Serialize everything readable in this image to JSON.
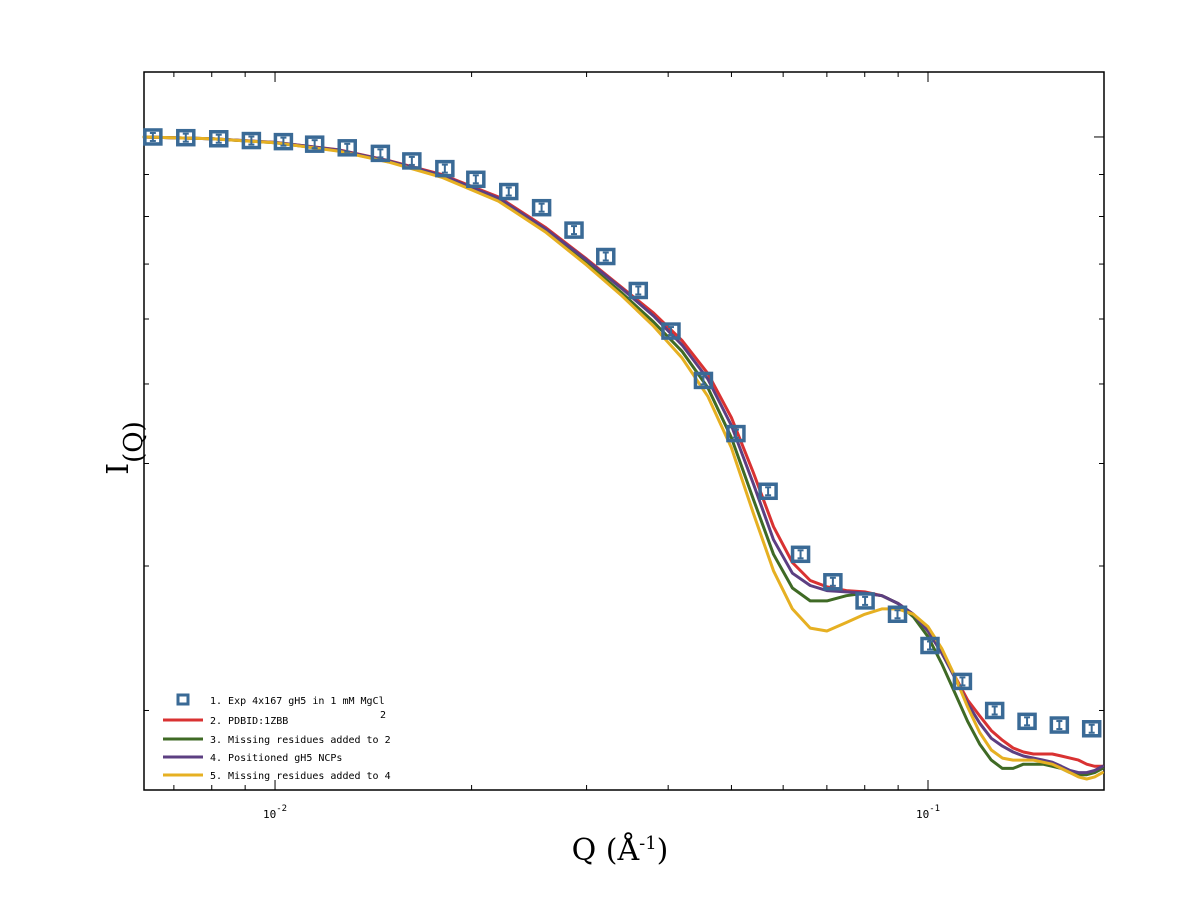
{
  "chart_data": {
    "type": "scatter",
    "xscale": "log",
    "yscale": "log",
    "xlim": [
      0.0063,
      0.186
    ],
    "ylim": [
      0.16,
      1.2
    ],
    "grid": false,
    "legend_position": "bottom-left",
    "xlabel_main": "Q (Å",
    "xlabel_sup": "-1",
    "xlabel_close": ")",
    "ylabel_main": "I",
    "ylabel_sub": "(Q)",
    "x_ticks": [
      {
        "value": 0.01,
        "base": "10",
        "exp": "-2"
      },
      {
        "value": 0.1,
        "base": "10",
        "exp": "-1"
      }
    ],
    "colors": {
      "exp": "#3a6a96",
      "pdb": "#d93232",
      "missing2": "#3f6a25",
      "positioned": "#5c3f82",
      "missing4": "#e6b022"
    },
    "series": [
      {
        "name": "1. Exp 4x167 gH5 in 1 mM MgCl",
        "subscript": "2",
        "kind": "markers",
        "color_key": "exp",
        "x": [
          0.0065,
          0.0073,
          0.0082,
          0.0092,
          0.0103,
          0.0115,
          0.0129,
          0.0145,
          0.0162,
          0.0182,
          0.0203,
          0.0228,
          0.0256,
          0.0287,
          0.0321,
          0.036,
          0.0404,
          0.0453,
          0.0508,
          0.0569,
          0.0638,
          0.0715,
          0.0801,
          0.0898,
          0.1007,
          0.1129,
          0.1265,
          0.1418,
          0.1589,
          0.1781
        ],
        "y": [
          1.0,
          0.998,
          0.995,
          0.99,
          0.987,
          0.98,
          0.97,
          0.955,
          0.935,
          0.915,
          0.888,
          0.858,
          0.82,
          0.77,
          0.715,
          0.65,
          0.58,
          0.505,
          0.435,
          0.37,
          0.31,
          0.287,
          0.272,
          0.262,
          0.24,
          0.217,
          0.2,
          0.194,
          0.192,
          0.19
        ]
      },
      {
        "name": "2. PDBID:1ZBB",
        "kind": "line",
        "color_key": "pdb",
        "x": [
          0.0063,
          0.008,
          0.01,
          0.0125,
          0.015,
          0.018,
          0.022,
          0.026,
          0.03,
          0.034,
          0.038,
          0.042,
          0.046,
          0.05,
          0.054,
          0.058,
          0.062,
          0.066,
          0.07,
          0.075,
          0.08,
          0.085,
          0.09,
          0.095,
          0.1,
          0.105,
          0.11,
          0.115,
          0.12,
          0.125,
          0.13,
          0.135,
          0.14,
          0.145,
          0.15,
          0.155,
          0.16,
          0.165,
          0.17,
          0.175,
          0.18,
          0.185
        ],
        "y": [
          1.0,
          0.995,
          0.985,
          0.965,
          0.935,
          0.9,
          0.845,
          0.775,
          0.71,
          0.655,
          0.61,
          0.565,
          0.515,
          0.455,
          0.39,
          0.335,
          0.303,
          0.288,
          0.283,
          0.28,
          0.279,
          0.276,
          0.27,
          0.262,
          0.25,
          0.235,
          0.22,
          0.206,
          0.197,
          0.189,
          0.184,
          0.18,
          0.178,
          0.177,
          0.177,
          0.177,
          0.176,
          0.175,
          0.174,
          0.172,
          0.171,
          0.171
        ]
      },
      {
        "name": "3. Missing residues added to 2",
        "kind": "line",
        "color_key": "missing2",
        "x": [
          0.0063,
          0.008,
          0.01,
          0.0125,
          0.015,
          0.018,
          0.022,
          0.026,
          0.03,
          0.034,
          0.038,
          0.042,
          0.046,
          0.05,
          0.054,
          0.058,
          0.062,
          0.066,
          0.07,
          0.075,
          0.08,
          0.085,
          0.09,
          0.095,
          0.1,
          0.105,
          0.11,
          0.115,
          0.12,
          0.125,
          0.13,
          0.135,
          0.14,
          0.145,
          0.15,
          0.155,
          0.16,
          0.165,
          0.17,
          0.175,
          0.18,
          0.185
        ],
        "y": [
          1.0,
          0.995,
          0.984,
          0.962,
          0.932,
          0.895,
          0.838,
          0.768,
          0.702,
          0.645,
          0.595,
          0.548,
          0.495,
          0.43,
          0.362,
          0.31,
          0.282,
          0.272,
          0.272,
          0.276,
          0.278,
          0.276,
          0.27,
          0.26,
          0.246,
          0.228,
          0.21,
          0.194,
          0.182,
          0.174,
          0.17,
          0.17,
          0.172,
          0.172,
          0.172,
          0.171,
          0.17,
          0.168,
          0.167,
          0.167,
          0.168,
          0.17
        ]
      },
      {
        "name": "4. Positioned gH5 NCPs",
        "kind": "line",
        "color_key": "positioned",
        "x": [
          0.0063,
          0.008,
          0.01,
          0.0125,
          0.015,
          0.018,
          0.022,
          0.026,
          0.03,
          0.034,
          0.038,
          0.042,
          0.046,
          0.05,
          0.054,
          0.058,
          0.062,
          0.066,
          0.07,
          0.075,
          0.08,
          0.085,
          0.09,
          0.095,
          0.1,
          0.105,
          0.11,
          0.115,
          0.12,
          0.125,
          0.13,
          0.135,
          0.14,
          0.145,
          0.15,
          0.155,
          0.16,
          0.165,
          0.17,
          0.175,
          0.18,
          0.185
        ],
        "y": [
          1.0,
          0.995,
          0.985,
          0.964,
          0.934,
          0.898,
          0.842,
          0.772,
          0.708,
          0.653,
          0.605,
          0.558,
          0.507,
          0.445,
          0.378,
          0.323,
          0.294,
          0.284,
          0.28,
          0.279,
          0.278,
          0.276,
          0.27,
          0.262,
          0.25,
          0.235,
          0.219,
          0.204,
          0.193,
          0.185,
          0.181,
          0.178,
          0.176,
          0.175,
          0.174,
          0.173,
          0.171,
          0.169,
          0.168,
          0.168,
          0.169,
          0.171
        ]
      },
      {
        "name": "5. Missing residues added to 4",
        "kind": "line",
        "color_key": "missing4",
        "x": [
          0.0063,
          0.008,
          0.01,
          0.0125,
          0.015,
          0.018,
          0.022,
          0.026,
          0.03,
          0.034,
          0.038,
          0.042,
          0.046,
          0.05,
          0.054,
          0.058,
          0.062,
          0.066,
          0.07,
          0.075,
          0.08,
          0.085,
          0.09,
          0.095,
          0.1,
          0.105,
          0.11,
          0.115,
          0.12,
          0.125,
          0.13,
          0.135,
          0.14,
          0.145,
          0.15,
          0.155,
          0.16,
          0.165,
          0.17,
          0.175,
          0.18,
          0.185
        ],
        "y": [
          1.0,
          0.995,
          0.984,
          0.961,
          0.931,
          0.893,
          0.835,
          0.765,
          0.698,
          0.64,
          0.588,
          0.538,
          0.483,
          0.418,
          0.348,
          0.296,
          0.266,
          0.252,
          0.25,
          0.256,
          0.262,
          0.266,
          0.266,
          0.262,
          0.253,
          0.238,
          0.22,
          0.202,
          0.188,
          0.179,
          0.175,
          0.174,
          0.174,
          0.174,
          0.173,
          0.172,
          0.17,
          0.168,
          0.166,
          0.165,
          0.166,
          0.168
        ]
      }
    ]
  }
}
